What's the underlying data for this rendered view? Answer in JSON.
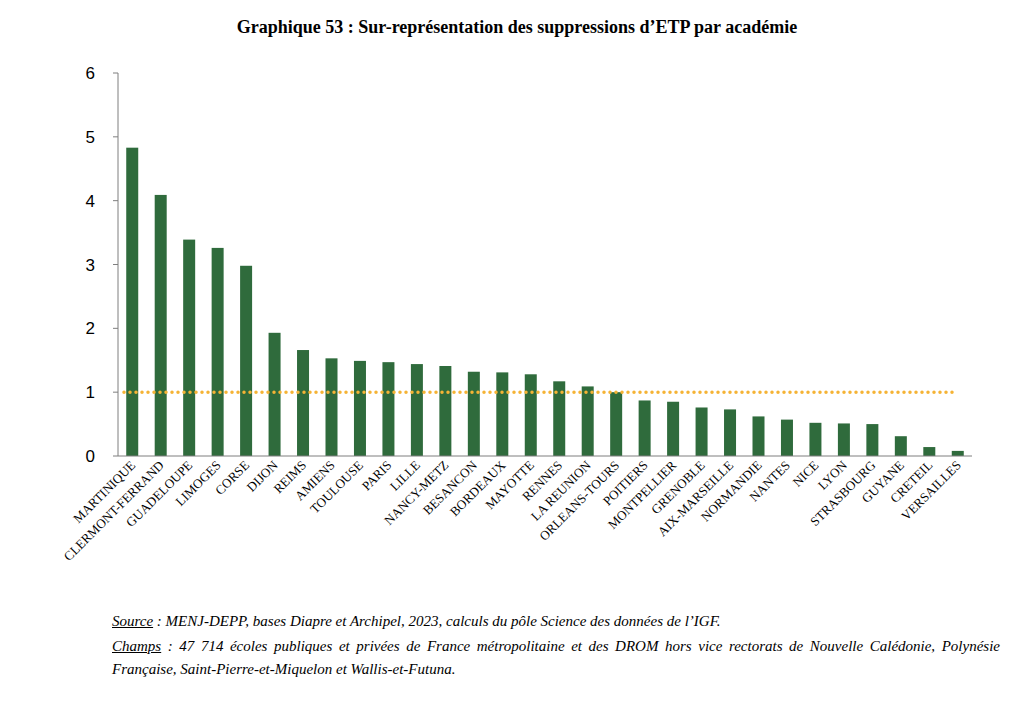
{
  "chart_data": {
    "type": "bar",
    "title": "Graphique 53 : Sur-représentation des suppressions d’ETP par académie",
    "categories": [
      "MARTINIQUE",
      "CLERMONT-FERRAND",
      "GUADELOUPE",
      "LIMOGES",
      "CORSE",
      "DIJON",
      "REIMS",
      "AMIENS",
      "TOULOUSE",
      "PARIS",
      "LILLE",
      "NANCY-METZ",
      "BESANCON",
      "BORDEAUX",
      "MAYOTTE",
      "RENNES",
      "LA REUNION",
      "ORLEANS-TOURS",
      "POITIERS",
      "MONTPELLIER",
      "GRENOBLE",
      "AIX-MARSEILLE",
      "NORMANDIE",
      "NANTES",
      "NICE",
      "LYON",
      "STRASBOURG",
      "GUYANE",
      "CRETEIL",
      "VERSAILLES"
    ],
    "values": [
      4.83,
      4.09,
      3.39,
      3.26,
      2.98,
      1.93,
      1.66,
      1.53,
      1.49,
      1.47,
      1.44,
      1.41,
      1.32,
      1.31,
      1.28,
      1.17,
      1.09,
      1.0,
      0.87,
      0.85,
      0.76,
      0.73,
      0.62,
      0.57,
      0.52,
      0.51,
      0.5,
      0.31,
      0.14,
      0.08
    ],
    "color": "#2f6b3c",
    "ylim": [
      0,
      6
    ],
    "yticks": [
      0,
      1,
      2,
      3,
      4,
      5,
      6
    ],
    "grid": false,
    "reference_line": {
      "value": 1,
      "color": "#f5b335",
      "line_style": "dotted"
    },
    "source_label": "Source",
    "source": " : MENJ-DEPP, bases Diapre et Archipel, 2023, calculs du pôle Science des données de l’IGF.",
    "champs_label": "Champs",
    "champs": " : 47 714 écoles publiques et privées de France métropolitaine et des DROM hors vice rectorats de Nouvelle Calédonie, Polynésie Française, Saint-Pierre-et-Miquelon et Wallis-et-Futuna."
  }
}
